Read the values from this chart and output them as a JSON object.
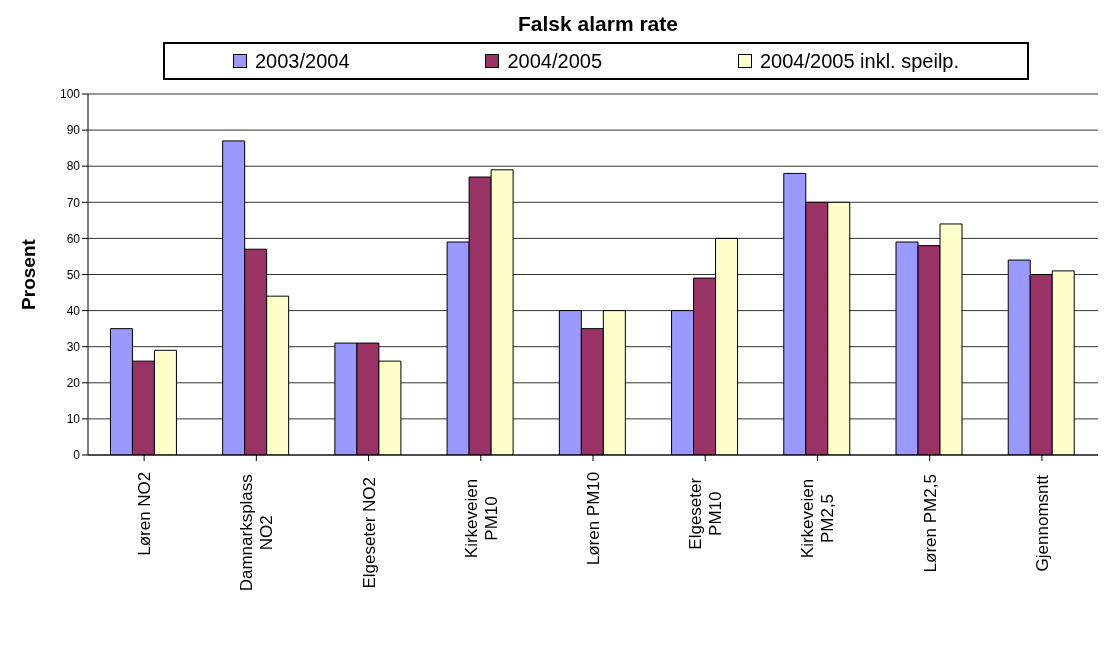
{
  "chart_data": {
    "type": "bar",
    "title": "Falsk alarm rate",
    "ylabel": "Prosent",
    "categories": [
      "Løren NO2",
      "Damnarksplass NO2",
      "Elgeseter NO2",
      "Kirkeveien PM10",
      "Løren PM10",
      "Elgeseter PM10",
      "Kirkeveien PM2,5",
      "Løren PM2,5",
      "Gjennomsntt"
    ],
    "series": [
      {
        "name": "2003/2004",
        "color": "#9999ff",
        "values": [
          35,
          87,
          31,
          59,
          40,
          40,
          78,
          59,
          54
        ]
      },
      {
        "name": "2004/2005",
        "color": "#993366",
        "values": [
          26,
          57,
          31,
          77,
          35,
          49,
          70,
          58,
          50
        ]
      },
      {
        "name": "2004/2005 inkl. speilp.",
        "color": "#ffffcc",
        "values": [
          29,
          44,
          26,
          79,
          40,
          60,
          70,
          64,
          51
        ]
      }
    ],
    "ylim": [
      0,
      100
    ],
    "yticks": [
      0,
      10,
      20,
      30,
      40,
      50,
      60,
      70,
      80,
      90,
      100
    ],
    "grid": "y",
    "legend": "top"
  }
}
